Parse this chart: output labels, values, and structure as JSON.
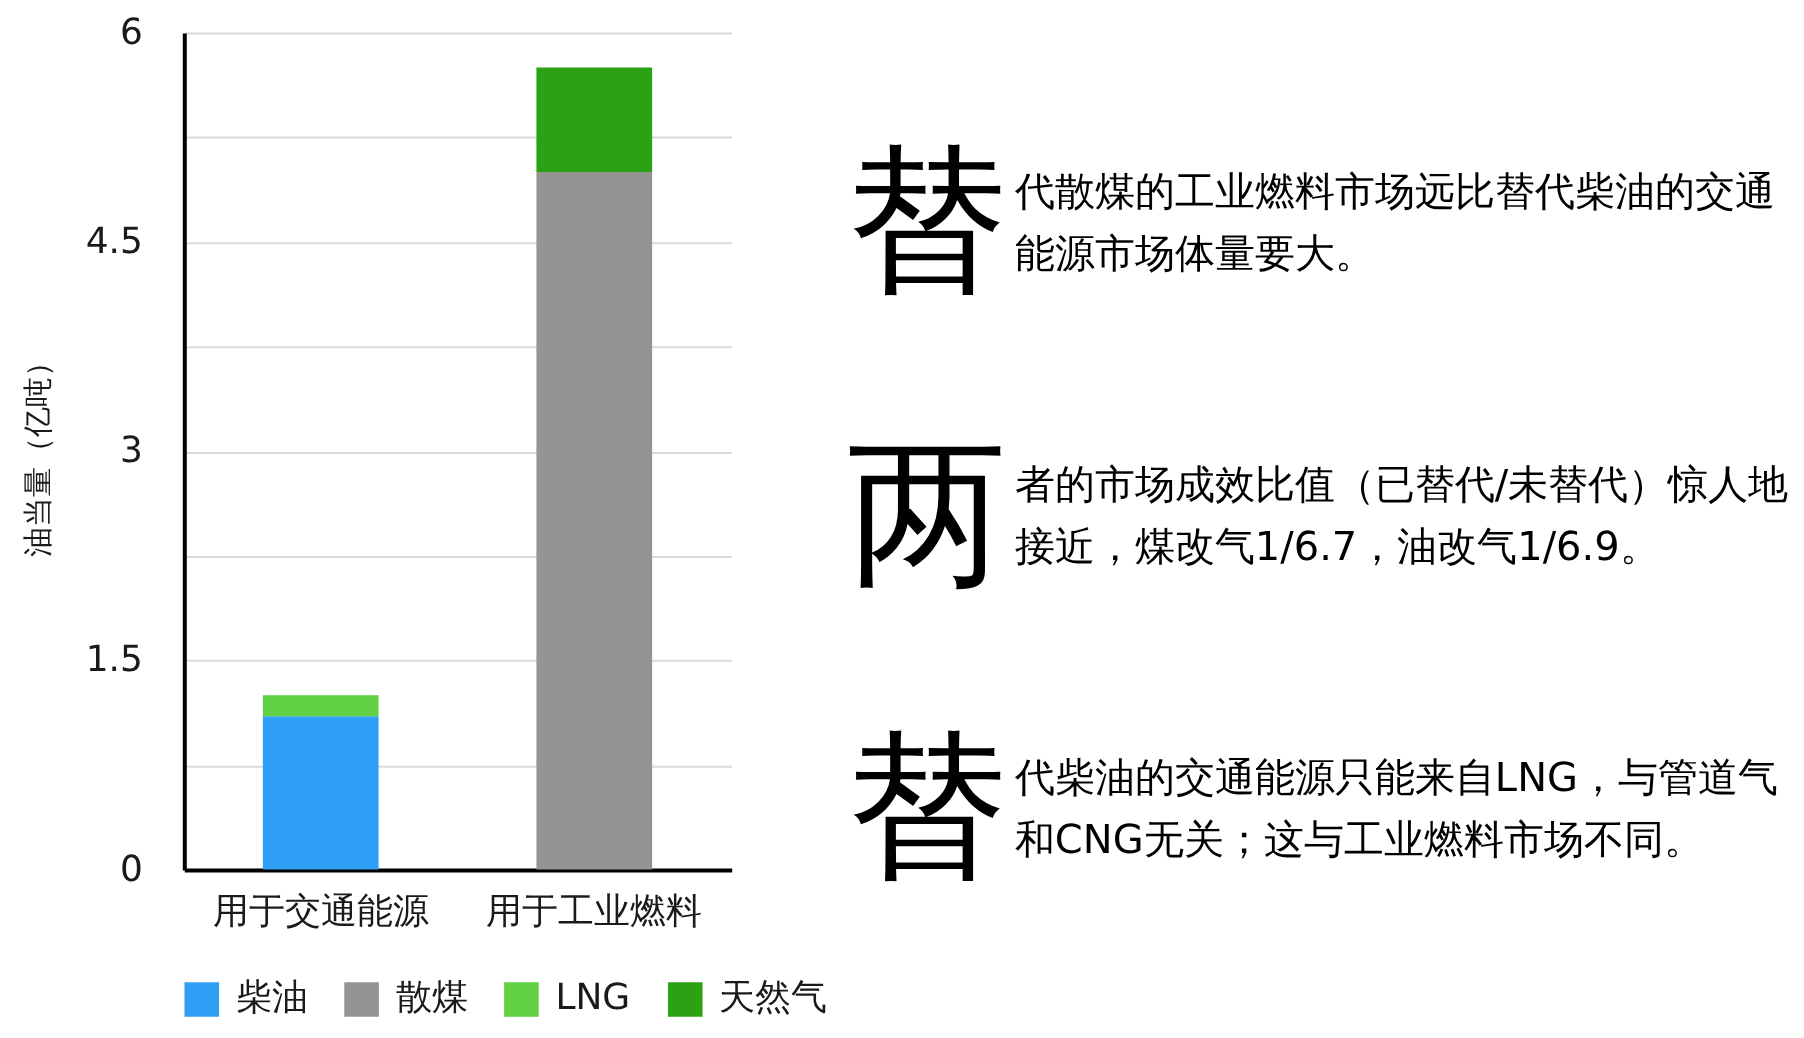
{
  "chart_data": [
    {
      "type": "bar",
      "ylabel": "油当量（亿吨）",
      "categories": [
        "用于交通能源",
        "用于工业燃料"
      ],
      "series": [
        {
          "name": "柴油",
          "color": "#2f9ff5",
          "values": [
            1.1,
            null
          ]
        },
        {
          "name": "散煤",
          "color": "#949494",
          "values": [
            null,
            5
          ]
        },
        {
          "name": "LNG",
          "color": "#5fd142",
          "values": [
            0.15,
            null
          ]
        },
        {
          "name": "天然气",
          "color": "#2ca114",
          "values": [
            null,
            0.75
          ]
        }
      ],
      "stacked": true,
      "ylim": [
        0,
        6
      ],
      "yticks": [
        0,
        {
          "value": 0.75,
          "label": null
        },
        1.5,
        {
          "value": 2.25,
          "label": null
        },
        3,
        {
          "value": 3.75,
          "label": null
        },
        4.5,
        {
          "value": 5.25,
          "label": null
        },
        6
      ],
      "grid": "y",
      "legend": "bottom"
    },
    {
      "type": "other",
      "annotations": [
        "替代散煤的工业燃料市场远比替代柴油的交通能源市场体量要大。",
        "两者的市场成效比值（已替代/未替代）惊人地接近，煤改气1/6.7，油改气1/6.9。",
        "替代柴油的交通能源只能来自LNG，与管道气和CNG无关；这与工业燃料市场不同。"
      ]
    }
  ]
}
